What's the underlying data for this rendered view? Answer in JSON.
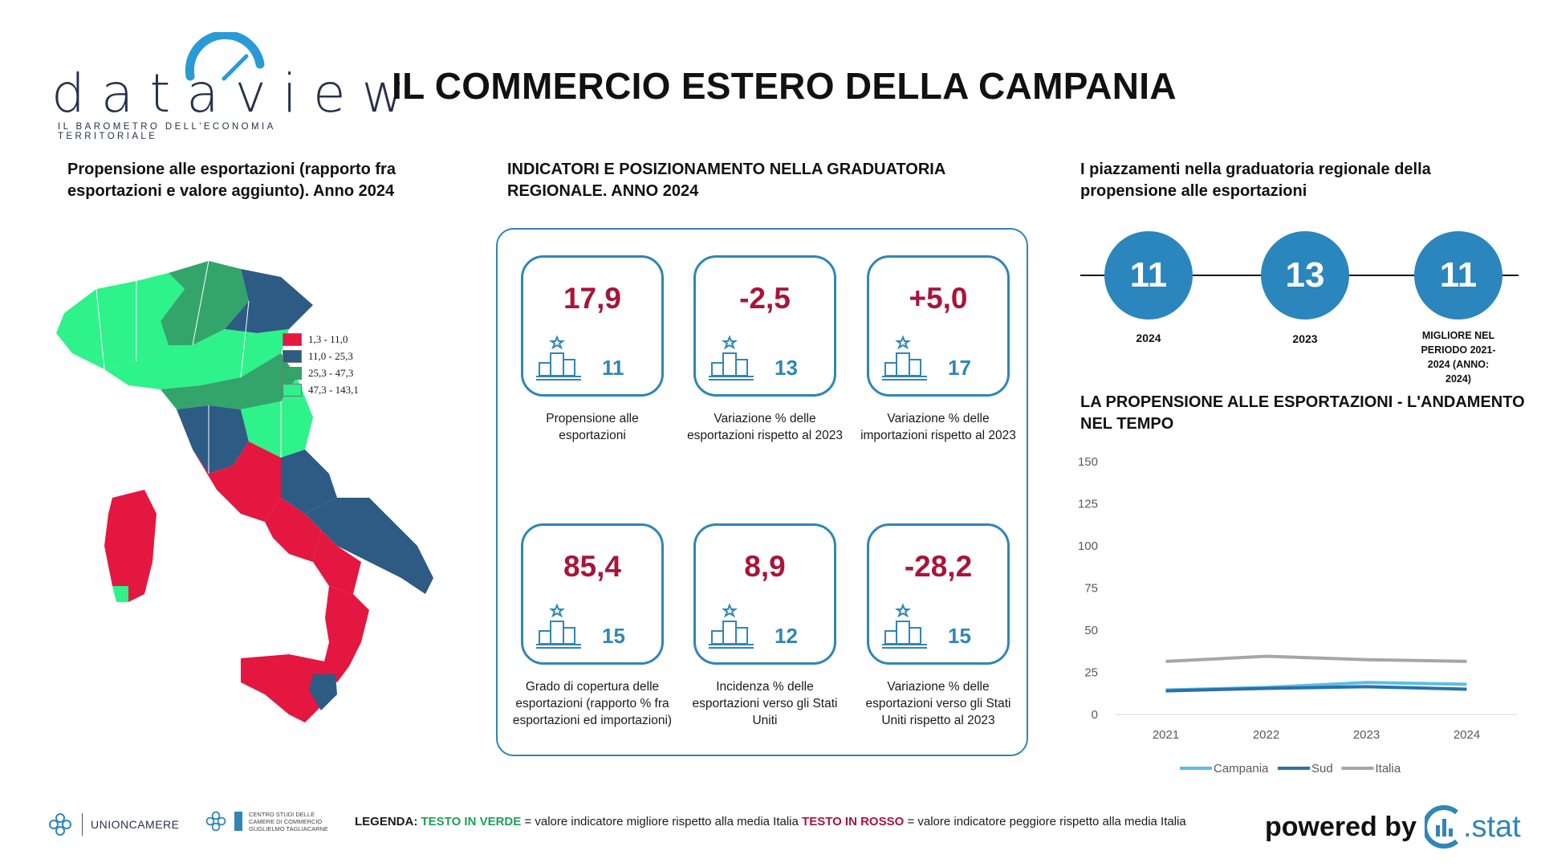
{
  "logo": {
    "word": "dataview",
    "subtitle": "IL BAROMETRO DELL'ECONOMIA TERRITORIALE"
  },
  "title": "IL COMMERCIO ESTERO DELLA CAMPANIA",
  "map_section": {
    "title": "Propensione alle esportazioni (rapporto fra esportazioni e valore aggiunto). Anno 2024",
    "legend": [
      {
        "label": "1,3 - 11,0",
        "color": "#e3173f"
      },
      {
        "label": "11,0 - 25,3",
        "color": "#2d5b83"
      },
      {
        "label": "25,3 - 47,3",
        "color": "#33a56b"
      },
      {
        "label": "47,3 - 143,1",
        "color": "#2ef28a"
      }
    ]
  },
  "indicators": {
    "title": "INDICATORI E POSIZIONAMENTO NELLA GRADUATORIA REGIONALE. ANNO 2024",
    "cards": [
      {
        "value": "17,9",
        "rank": "11",
        "desc": "Propensione alle esportazioni"
      },
      {
        "value": "-2,5",
        "rank": "13",
        "desc": "Variazione % delle esportazioni rispetto al 2023"
      },
      {
        "value": "+5,0",
        "rank": "17",
        "desc": "Variazione % delle importazioni rispetto al 2023"
      },
      {
        "value": "85,4",
        "rank": "15",
        "desc": "Grado di copertura delle esportazioni (rapporto % fra esportazioni ed importazioni)"
      },
      {
        "value": "8,9",
        "rank": "12",
        "desc": "Incidenza % delle esportazioni verso gli Stati Uniti"
      },
      {
        "value": "-28,2",
        "rank": "15",
        "desc": "Variazione % delle esportazioni verso gli Stati Uniti rispetto al 2023"
      }
    ],
    "value_color": "#a8153a",
    "rank_color": "#2f86b7"
  },
  "ranking": {
    "title": "I piazzamenti nella graduatoria regionale della propensione alle esportazioni",
    "items": [
      {
        "value": "11",
        "label": "2024"
      },
      {
        "value": "13",
        "label": "2023"
      },
      {
        "value": "11",
        "label": "MIGLIORE NEL PERIODO 2021-2024 (ANNO: 2024)"
      }
    ]
  },
  "chart_data": {
    "type": "line",
    "title": "LA PROPENSIONE ALLE ESPORTAZIONI - L'ANDAMENTO NEL TEMPO",
    "x": [
      "2021",
      "2022",
      "2023",
      "2024"
    ],
    "ylim": [
      0,
      150
    ],
    "yticks": [
      "0",
      "25",
      "50",
      "75",
      "100",
      "125",
      "150"
    ],
    "grid": false,
    "legend_position": "bottom",
    "series": [
      {
        "name": "Campania",
        "values": [
          14.5,
          16.0,
          19.0,
          17.9
        ],
        "color": "#5bbde8"
      },
      {
        "name": "Sud",
        "values": [
          14.0,
          15.5,
          16.5,
          15.0
        ],
        "color": "#2872a8"
      },
      {
        "name": "Italia",
        "values": [
          31.5,
          34.5,
          32.5,
          31.5
        ],
        "color": "#a6a6a6"
      }
    ]
  },
  "footer": {
    "org1": "UNIONCAMERE",
    "org2_lines": [
      "CENTRO STUDI DELLE",
      "CAMERE DI COMMERCIO",
      "GUGLIELMO TAGLIACARNE"
    ],
    "legend_prefix": "LEGENDA:",
    "legend_green": "TESTO IN VERDE",
    "legend_green_text": "= valore indicatore migliore rispetto alla media Italia",
    "legend_red": "TESTO IN ROSSO",
    "legend_red_text": "= valore indicatore peggiore rispetto alla media Italia",
    "powered_by": "powered by",
    "brand": ".stat"
  }
}
